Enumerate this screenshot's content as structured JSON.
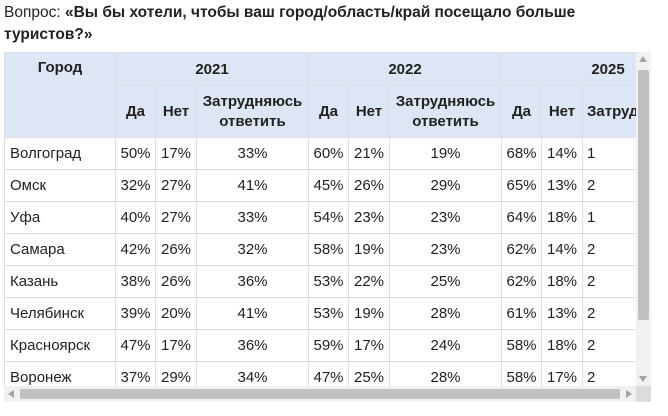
{
  "question": {
    "prefix": "Вопрос: ",
    "text": "«Вы бы хотели, чтобы ваш город/область/край посещало больше туристов?»"
  },
  "table": {
    "city_header": "Город",
    "years": [
      "2021",
      "2022",
      "2025"
    ],
    "sub_headers": {
      "yes": "Да",
      "no": "Нет",
      "unsure": "Затрудняюсь ответить",
      "unsure_partial": "Затруд отве"
    },
    "rows": [
      {
        "city": "Волгоград",
        "v": [
          "50%",
          "17%",
          "33%",
          "60%",
          "21%",
          "19%",
          "68%",
          "14%",
          "1"
        ]
      },
      {
        "city": "Омск",
        "v": [
          "32%",
          "27%",
          "41%",
          "45%",
          "26%",
          "29%",
          "65%",
          "13%",
          "2"
        ]
      },
      {
        "city": "Уфа",
        "v": [
          "40%",
          "27%",
          "33%",
          "54%",
          "23%",
          "23%",
          "64%",
          "18%",
          "1"
        ]
      },
      {
        "city": "Самара",
        "v": [
          "42%",
          "26%",
          "32%",
          "58%",
          "19%",
          "23%",
          "62%",
          "14%",
          "2"
        ]
      },
      {
        "city": "Казань",
        "v": [
          "38%",
          "26%",
          "36%",
          "53%",
          "22%",
          "25%",
          "62%",
          "18%",
          "2"
        ]
      },
      {
        "city": "Челябинск",
        "v": [
          "39%",
          "20%",
          "41%",
          "53%",
          "19%",
          "28%",
          "61%",
          "13%",
          "2"
        ]
      },
      {
        "city": "Красноярск",
        "v": [
          "47%",
          "17%",
          "36%",
          "59%",
          "17%",
          "24%",
          "58%",
          "18%",
          "2"
        ]
      },
      {
        "city": "Воронеж",
        "v": [
          "37%",
          "29%",
          "34%",
          "47%",
          "25%",
          "28%",
          "58%",
          "17%",
          "2"
        ]
      }
    ]
  },
  "colors": {
    "header_bg": "#dce6f4",
    "border": "#d9dee7",
    "scroll_thumb": "#c1c1c1"
  }
}
